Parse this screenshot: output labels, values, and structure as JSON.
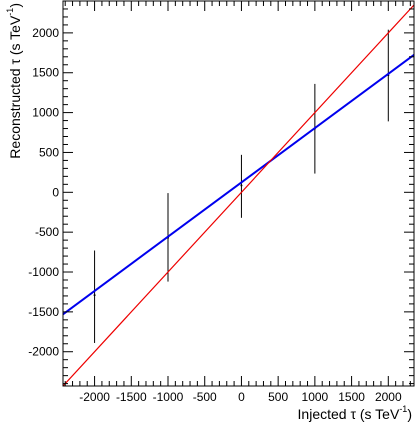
{
  "chart_data": {
    "type": "scatter",
    "title": "",
    "xlabel": "Injected τ (s TeV",
    "xlabel_sup": "-1",
    "xlabel_end": ")",
    "ylabel": "Reconstructed  τ (s TeV",
    "ylabel_sup": "-1",
    "ylabel_end": ")",
    "xlim": [
      -2430,
      2350
    ],
    "ylim": [
      -2430,
      2400
    ],
    "x_ticks": [
      -2000,
      -1500,
      -1000,
      -500,
      0,
      500,
      1000,
      1500,
      2000
    ],
    "x_tick_labels": [
      "-2000",
      "-1500",
      "-1000",
      "-500",
      "0",
      "500",
      "1000",
      "1500",
      "2000"
    ],
    "y_ticks": [
      -2000,
      -1500,
      -1000,
      -500,
      0,
      500,
      1000,
      1500,
      2000
    ],
    "y_tick_labels": [
      "-2000",
      "-1500",
      "-1000",
      "-500",
      "0",
      "500",
      "1000",
      "1500",
      "2000"
    ],
    "grid": false,
    "series": [
      {
        "kind": "errorbar",
        "color": "#000000",
        "points": [
          {
            "x": -2000,
            "y": -1290,
            "ylo": -1890,
            "yhi": -730
          },
          {
            "x": -1000,
            "y": -570,
            "ylo": -1120,
            "yhi": -10
          },
          {
            "x": 0,
            "y": 85,
            "ylo": -320,
            "yhi": 470
          },
          {
            "x": 1000,
            "y": 800,
            "ylo": 235,
            "yhi": 1360
          },
          {
            "x": 2000,
            "y": 1470,
            "ylo": 890,
            "yhi": 2040
          }
        ]
      },
      {
        "kind": "line",
        "color": "#0000ee",
        "x": [
          -2430,
          2350
        ],
        "y": [
          -1530,
          1725
        ]
      },
      {
        "kind": "line",
        "color": "#ee0000",
        "x": [
          -2430,
          2350
        ],
        "y": [
          -2430,
          2350
        ]
      }
    ]
  }
}
